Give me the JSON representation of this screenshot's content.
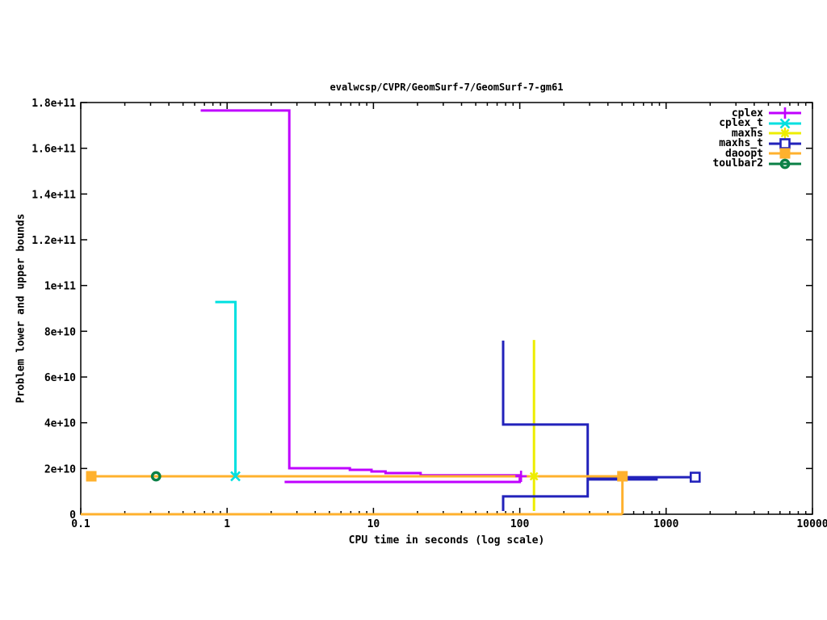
{
  "page": {
    "background": "#ffffff"
  },
  "chart_data": {
    "type": "line",
    "title": "evalwcsp/CVPR/GeomSurf-7/GeomSurf-7-gm61",
    "xlabel": "CPU time in seconds (log scale)",
    "ylabel": "Problem lower and upper bounds",
    "x_scale": "log",
    "xlim": [
      0.1,
      10000
    ],
    "ylim": [
      0,
      180000000000.0
    ],
    "grid": false,
    "legend_position": "top-right-inside",
    "axis_color": "#000000",
    "x_ticks": {
      "values": [
        0.1,
        1,
        10,
        100,
        1000,
        10000
      ],
      "labels": [
        "0.1",
        "1",
        "10",
        "100",
        "1000",
        "10000"
      ]
    },
    "y_ticks": {
      "values": [
        0,
        20000000000.0,
        40000000000.0,
        60000000000.0,
        80000000000.0,
        100000000000.0,
        120000000000.0,
        140000000000.0,
        160000000000.0,
        180000000000.0
      ],
      "labels": [
        "0",
        "2e+10",
        "4e+10",
        "6e+10",
        "8e+10",
        "1e+11",
        "1.2e+11",
        "1.4e+11",
        "1.6e+11",
        "1.8e+11"
      ]
    },
    "series": [
      {
        "name": "cplex",
        "color": "#bf00ff",
        "marker": "plus",
        "segments": [
          [
            [
              0.66,
              176500000000.0
            ],
            [
              2.66,
              176500000000.0
            ],
            [
              2.66,
              20100000000.0
            ],
            [
              6.9,
              20100000000.0
            ],
            [
              6.9,
              19400000000.0
            ],
            [
              9.7,
              19400000000.0
            ],
            [
              9.7,
              18700000000.0
            ],
            [
              12.1,
              18700000000.0
            ],
            [
              12.1,
              18000000000.0
            ],
            [
              21,
              18000000000.0
            ],
            [
              21,
              17000000000.0
            ],
            [
              102,
              17000000000.0
            ]
          ],
          [
            [
              2.47,
              14100000000.0
            ],
            [
              100,
              14100000000.0
            ],
            [
              100,
              16600000000.0
            ]
          ]
        ],
        "markers": [
          [
            102,
            16600000000.0
          ]
        ]
      },
      {
        "name": "cplex_t",
        "color": "#00e0e0",
        "marker": "cross",
        "segments": [
          [
            [
              0.83,
              92800000000.0
            ],
            [
              1.14,
              92800000000.0
            ],
            [
              1.14,
              16600000000.0
            ]
          ]
        ],
        "markers": [
          [
            1.14,
            16600000000.0
          ]
        ]
      },
      {
        "name": "maxhs",
        "color": "#eded00",
        "marker": "star",
        "segments": [
          [
            [
              125,
              76200000000.0
            ],
            [
              125,
              1400000000.0
            ]
          ]
        ],
        "markers": [
          [
            125,
            16600000000.0
          ]
        ]
      },
      {
        "name": "maxhs_t",
        "color": "#2222bb",
        "marker": "open-square",
        "segments": [
          [
            [
              77,
              75900000000.0
            ],
            [
              77,
              39200000000.0
            ],
            [
              291,
              39200000000.0
            ],
            [
              291,
              16200000000.0
            ],
            [
              1580,
              16200000000.0
            ]
          ],
          [
            [
              77,
              1400000000.0
            ],
            [
              77,
              7800000000.0
            ],
            [
              291,
              7800000000.0
            ],
            [
              291,
              15200000000.0
            ],
            [
              860,
              15200000000.0
            ],
            [
              860,
              16200000000.0
            ]
          ]
        ],
        "markers": [
          [
            1580,
            16200000000.0
          ]
        ]
      },
      {
        "name": "daoopt",
        "color": "#ffb12d",
        "marker": "filled-square",
        "segments": [
          [
            [
              0.118,
              16600000000.0
            ],
            [
              503,
              16600000000.0
            ],
            [
              503,
              0
            ]
          ],
          [
            [
              0.1,
              0
            ],
            [
              503,
              0
            ]
          ]
        ],
        "markers": [
          [
            0.118,
            16600000000.0
          ],
          [
            503,
            16600000000.0
          ]
        ]
      },
      {
        "name": "toulbar2",
        "color": "#0a8046",
        "marker": "donut",
        "segments": [],
        "markers": [
          [
            0.327,
            16600000000.0
          ]
        ]
      }
    ]
  }
}
